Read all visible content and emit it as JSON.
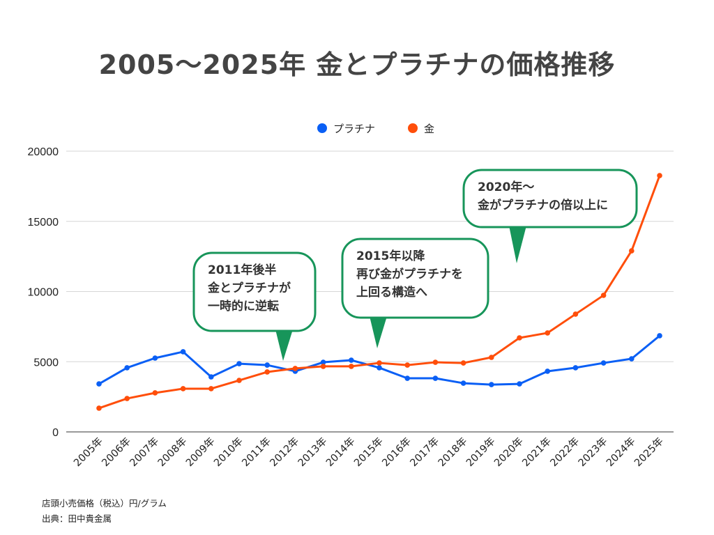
{
  "chart_data": {
    "type": "line",
    "title": "2005〜2025年 金とプラチナの価格推移",
    "categories": [
      "2005年",
      "2006年",
      "2007年",
      "2008年",
      "2009年",
      "2010年",
      "2011年",
      "2012年",
      "2013年",
      "2014年",
      "2015年",
      "2016年",
      "2017年",
      "2018年",
      "2019年",
      "2020年",
      "2021年",
      "2022年",
      "2023年",
      "2024年",
      "2025年"
    ],
    "series": [
      {
        "name": "プラチナ",
        "color": "#0a5ff5",
        "values": [
          3420,
          4570,
          5260,
          5710,
          3920,
          4860,
          4760,
          4320,
          4960,
          5110,
          4570,
          3820,
          3820,
          3470,
          3370,
          3420,
          4320,
          4570,
          4910,
          5210,
          6850
        ]
      },
      {
        "name": "金",
        "color": "#ff4e0a",
        "values": [
          1690,
          2380,
          2780,
          3080,
          3080,
          3670,
          4270,
          4520,
          4670,
          4670,
          4910,
          4760,
          4960,
          4910,
          5310,
          6700,
          7050,
          8390,
          9730,
          12900,
          18260
        ]
      }
    ],
    "ylim": [
      0,
      20000
    ],
    "yticks": [
      "0",
      "5000",
      "10000",
      "15000",
      "20000"
    ],
    "grid": true,
    "legend": "top-center",
    "annotations": [
      {
        "lines": [
          "2011年後半",
          "金とプラチナが",
          "一時的に逆転"
        ],
        "category": "2012年"
      },
      {
        "lines": [
          "2015年以降",
          "再び金がプラチナを",
          "上回る構造へ"
        ],
        "category": "2015年"
      },
      {
        "lines": [
          "2020年〜",
          "金がプラチナの倍以上に"
        ],
        "category": "2020年"
      }
    ],
    "annotation_color": "#17955a"
  },
  "footer": {
    "unit": "店頭小売価格（税込）円/グラム",
    "source": "出典：田中貴金属"
  }
}
